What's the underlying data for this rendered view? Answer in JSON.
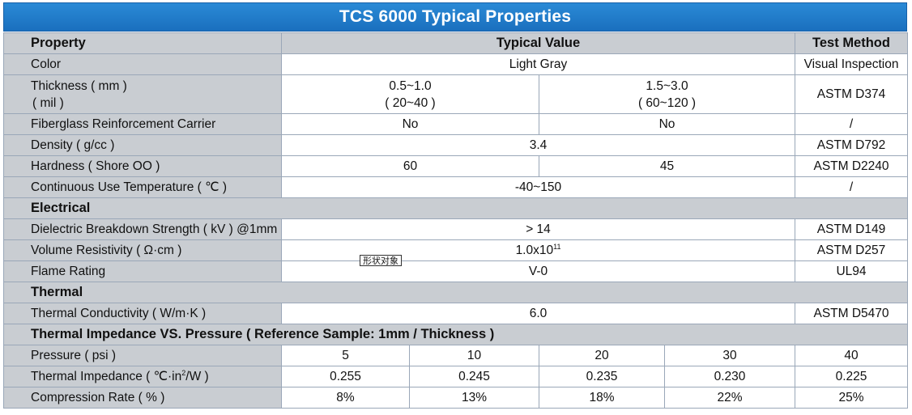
{
  "title": "TCS 6000 Typical Properties",
  "header": {
    "property": "Property",
    "typical_value": "Typical Value",
    "test_method": "Test Method"
  },
  "rows": {
    "color": {
      "label": "Color",
      "value": "Light Gray",
      "method": "Visual Inspection"
    },
    "thickness": {
      "label_line1": "Thickness ( mm )",
      "label_line2": "( mil )",
      "v1_line1": "0.5~1.0",
      "v1_line2": "( 20~40 )",
      "v2_line1": "1.5~3.0",
      "v2_line2": "( 60~120 )",
      "method": "ASTM D374"
    },
    "fiberglass": {
      "label": "Fiberglass Reinforcement Carrier",
      "v1": "No",
      "v2": "No",
      "method": "/"
    },
    "density": {
      "label": "Density ( g/cc )",
      "value": "3.4",
      "method": "ASTM D792"
    },
    "hardness": {
      "label": "Hardness ( Shore OO )",
      "v1": "60",
      "v2": "45",
      "method": "ASTM D2240"
    },
    "continuous_temp": {
      "label": "Continuous Use Temperature ( ℃ )",
      "value": "-40~150",
      "method": "/"
    }
  },
  "electrical": {
    "section": "Electrical",
    "dielectric": {
      "label": "Dielectric Breakdown Strength ( kV ) @1mm",
      "value": "> 14",
      "method": "ASTM D149"
    },
    "volume_resistivity": {
      "label": "Volume Resistivity ( Ω·cm )",
      "value_base": "1.0x10",
      "value_exp": "11",
      "method": "ASTM D257"
    },
    "flame": {
      "label": "Flame Rating",
      "value": "V-0",
      "method": "UL94"
    }
  },
  "thermal": {
    "section": "Thermal",
    "conductivity": {
      "label": "Thermal Conductivity ( W/m·K )",
      "value": "6.0",
      "method": "ASTM D5470"
    }
  },
  "impedance": {
    "section": "Thermal Impedance VS. Pressure ( Reference Sample: 1mm / Thickness )",
    "pressure": {
      "label": "Pressure ( psi )",
      "values": [
        "5",
        "10",
        "20",
        "30",
        "40"
      ]
    },
    "thermal_impedance": {
      "label_base": "Thermal Impedance ( ℃·in",
      "label_exp": "2",
      "label_tail": "/W )",
      "values": [
        "0.255",
        "0.245",
        "0.235",
        "0.230",
        "0.225"
      ]
    },
    "compression": {
      "label": "Compression Rate ( % )",
      "values": [
        "8%",
        "13%",
        "18%",
        "22%",
        "25%"
      ]
    }
  },
  "stamp": "形状对象"
}
